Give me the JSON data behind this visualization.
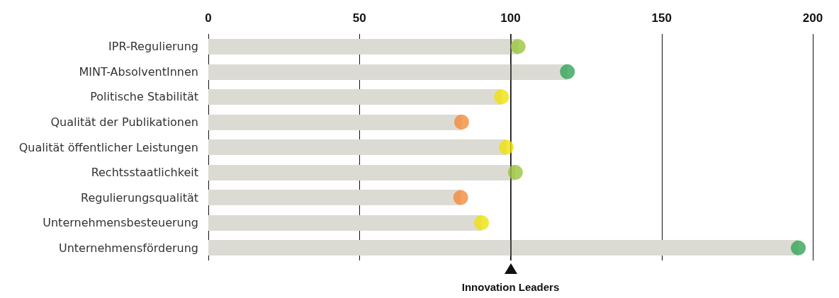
{
  "chart_data": {
    "type": "lollipop",
    "orientation": "horizontal",
    "categories": [
      "IPR-Regulierung",
      "MINT-AbsolventInnen",
      "Politische Stabilität",
      "Qualität der Publikationen",
      "Qualität öffentlicher Leistungen",
      "Rechtsstaatlichkeit",
      "Regulierungsqualität",
      "Unternehmensbesteuerung",
      "Unternehmensförderung"
    ],
    "values": [
      102.5,
      118.8,
      97,
      83.8,
      98.6,
      101.6,
      83.5,
      90.4,
      195.2
    ],
    "color": "#dcdbd3",
    "colors": [
      "#9bc53d",
      "#33a457",
      "#f0e10a",
      "#f28b3c",
      "#f0e10a",
      "#9bc53d",
      "#f28b3c",
      "#f0e10a",
      "#33a457"
    ],
    "xlim": [
      0,
      200
    ],
    "xticks": [
      0,
      50,
      100,
      150,
      200
    ],
    "grid": "x",
    "ref_lines": [
      {
        "axis": "x",
        "value": 100,
        "label": "Innovation Leaders"
      }
    ]
  }
}
